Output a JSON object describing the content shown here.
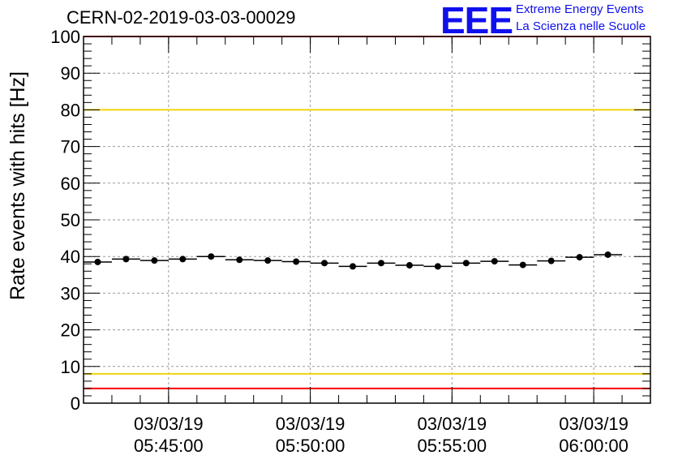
{
  "header": {
    "title": "CERN-02-2019-03-03-00029",
    "logo_text": "EEE",
    "logo_line_1": "Extreme Energy Events",
    "logo_line_2": "La Scienza nelle Scuole"
  },
  "colors": {
    "red_threshold": "#ff0000",
    "yellow_threshold": "#f2d40c",
    "markers": "#000000",
    "logo": "#1010ee"
  },
  "chart_data": {
    "type": "scatter",
    "title": "CERN-02-2019-03-03-00029",
    "xlabel": "",
    "ylabel": "Rate events with hits [Hz]",
    "xlim": [
      "2019-03-03 05:42:00",
      "2019-03-03 06:02:00"
    ],
    "ylim": [
      0,
      100
    ],
    "yticks": [
      0,
      10,
      20,
      30,
      40,
      50,
      60,
      70,
      80,
      90,
      100
    ],
    "xticks": [
      {
        "time": "2019-03-03 05:45:00",
        "label_date": "03/03/19",
        "label_time": "05:45:00"
      },
      {
        "time": "2019-03-03 05:50:00",
        "label_date": "03/03/19",
        "label_time": "05:50:00"
      },
      {
        "time": "2019-03-03 05:55:00",
        "label_date": "03/03/19",
        "label_time": "05:55:00"
      },
      {
        "time": "2019-03-03 06:00:00",
        "label_date": "03/03/19",
        "label_time": "06:00:00"
      }
    ],
    "grid": true,
    "reference_lines": [
      {
        "y": 100,
        "color": "red"
      },
      {
        "y": 80,
        "color": "yellow"
      },
      {
        "y": 8,
        "color": "yellow"
      },
      {
        "y": 4,
        "color": "red"
      }
    ],
    "series": [
      {
        "x": [
          "2019-03-03 05:42:30",
          "2019-03-03 05:43:30",
          "2019-03-03 05:44:30",
          "2019-03-03 05:45:30",
          "2019-03-03 05:46:30",
          "2019-03-03 05:47:30",
          "2019-03-03 05:48:30",
          "2019-03-03 05:49:30",
          "2019-03-03 05:50:30",
          "2019-03-03 05:51:30",
          "2019-03-03 05:52:30",
          "2019-03-03 05:53:30",
          "2019-03-03 05:54:30",
          "2019-03-03 05:55:30",
          "2019-03-03 05:56:30",
          "2019-03-03 05:57:30",
          "2019-03-03 05:58:30",
          "2019-03-03 05:59:30",
          "2019-03-03 06:00:30"
        ],
        "y": [
          38.5,
          39.3,
          38.9,
          39.3,
          40.0,
          39.1,
          38.9,
          38.6,
          38.2,
          37.3,
          38.2,
          37.6,
          37.3,
          38.2,
          38.7,
          37.7,
          38.8,
          39.8,
          40.5
        ],
        "x_halfwidth_seconds": 30
      }
    ]
  }
}
